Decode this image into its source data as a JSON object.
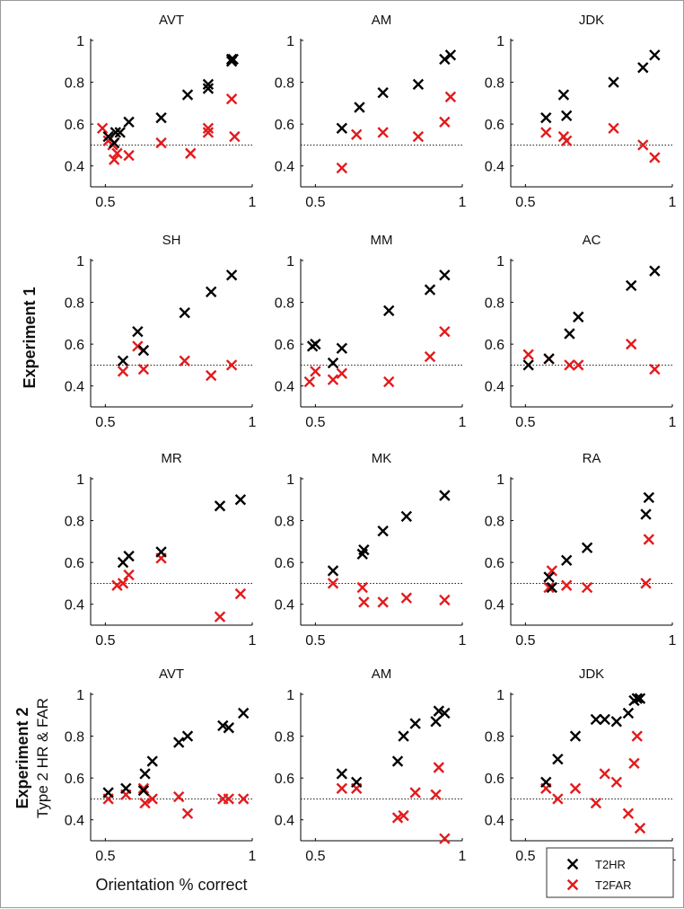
{
  "figure": {
    "xlabel": "Orientation % correct",
    "row_labels": [
      {
        "main": "Experiment 1",
        "sub": ""
      },
      {
        "main": "Experiment 2",
        "sub": "Type 2 HR & FAR"
      }
    ],
    "legend": [
      {
        "label": "T2HR",
        "color": "#000000"
      },
      {
        "label": "T2FAR",
        "color": "#e31a1c"
      }
    ],
    "reference_line": 0.5
  },
  "chart_data": [
    {
      "type": "scatter",
      "title": "AVT",
      "xlim": [
        0.45,
        1
      ],
      "ylim": [
        0.3,
        1
      ],
      "xticks": [
        "0.5",
        "1"
      ],
      "yticks": [
        "0.4",
        "0.6",
        "0.8",
        "1"
      ],
      "series": [
        {
          "name": "T2HR",
          "color": "#000000",
          "x": [
            0.51,
            0.53,
            0.535,
            0.55,
            0.58,
            0.69,
            0.78,
            0.85,
            0.85,
            0.93,
            0.93,
            0.935
          ],
          "y": [
            0.54,
            0.51,
            0.56,
            0.56,
            0.61,
            0.63,
            0.74,
            0.79,
            0.77,
            0.91,
            0.9,
            0.91
          ]
        },
        {
          "name": "T2FAR",
          "color": "#e31a1c",
          "x": [
            0.49,
            0.51,
            0.525,
            0.53,
            0.54,
            0.58,
            0.69,
            0.79,
            0.85,
            0.85,
            0.93,
            0.94
          ],
          "y": [
            0.58,
            0.52,
            0.5,
            0.43,
            0.46,
            0.45,
            0.51,
            0.46,
            0.58,
            0.56,
            0.72,
            0.54
          ]
        }
      ]
    },
    {
      "type": "scatter",
      "title": "AM",
      "xlim": [
        0.45,
        1
      ],
      "ylim": [
        0.3,
        1
      ],
      "xticks": [
        "0.5",
        "1"
      ],
      "yticks": [
        "0.4",
        "0.6",
        "0.8",
        "1"
      ],
      "series": [
        {
          "name": "T2HR",
          "color": "#000000",
          "x": [
            0.59,
            0.65,
            0.73,
            0.85,
            0.94,
            0.96
          ],
          "y": [
            0.58,
            0.68,
            0.75,
            0.79,
            0.91,
            0.93
          ]
        },
        {
          "name": "T2FAR",
          "color": "#e31a1c",
          "x": [
            0.59,
            0.64,
            0.73,
            0.85,
            0.94,
            0.96
          ],
          "y": [
            0.39,
            0.55,
            0.56,
            0.54,
            0.61,
            0.73
          ]
        }
      ]
    },
    {
      "type": "scatter",
      "title": "JDK",
      "xlim": [
        0.45,
        1
      ],
      "ylim": [
        0.3,
        1
      ],
      "xticks": [
        "0.5",
        "1"
      ],
      "yticks": [
        "0.4",
        "0.6",
        "0.8",
        "1"
      ],
      "series": [
        {
          "name": "T2HR",
          "color": "#000000",
          "x": [
            0.57,
            0.63,
            0.64,
            0.8,
            0.9,
            0.94
          ],
          "y": [
            0.63,
            0.74,
            0.64,
            0.8,
            0.87,
            0.93
          ]
        },
        {
          "name": "T2FAR",
          "color": "#e31a1c",
          "x": [
            0.57,
            0.63,
            0.64,
            0.8,
            0.9,
            0.94
          ],
          "y": [
            0.56,
            0.54,
            0.52,
            0.58,
            0.5,
            0.44
          ]
        }
      ]
    },
    {
      "type": "scatter",
      "title": "SH",
      "xlim": [
        0.45,
        1
      ],
      "ylim": [
        0.3,
        1
      ],
      "xticks": [
        "0.5",
        "1"
      ],
      "yticks": [
        "0.4",
        "0.6",
        "0.8",
        "1"
      ],
      "series": [
        {
          "name": "T2HR",
          "color": "#000000",
          "x": [
            0.56,
            0.61,
            0.63,
            0.77,
            0.86,
            0.93
          ],
          "y": [
            0.52,
            0.66,
            0.57,
            0.75,
            0.85,
            0.93
          ]
        },
        {
          "name": "T2FAR",
          "color": "#e31a1c",
          "x": [
            0.56,
            0.61,
            0.63,
            0.77,
            0.86,
            0.93
          ],
          "y": [
            0.47,
            0.59,
            0.48,
            0.52,
            0.45,
            0.5
          ]
        }
      ]
    },
    {
      "type": "scatter",
      "title": "MM",
      "xlim": [
        0.45,
        1
      ],
      "ylim": [
        0.3,
        1
      ],
      "xticks": [
        "0.5",
        "1"
      ],
      "yticks": [
        "0.4",
        "0.6",
        "0.8",
        "1"
      ],
      "series": [
        {
          "name": "T2HR",
          "color": "#000000",
          "x": [
            0.49,
            0.5,
            0.56,
            0.59,
            0.75,
            0.89,
            0.94
          ],
          "y": [
            0.59,
            0.6,
            0.51,
            0.58,
            0.76,
            0.86,
            0.93
          ]
        },
        {
          "name": "T2FAR",
          "color": "#e31a1c",
          "x": [
            0.48,
            0.5,
            0.56,
            0.59,
            0.75,
            0.89,
            0.94
          ],
          "y": [
            0.42,
            0.47,
            0.43,
            0.46,
            0.42,
            0.54,
            0.66
          ]
        }
      ]
    },
    {
      "type": "scatter",
      "title": "AC",
      "xlim": [
        0.45,
        1
      ],
      "ylim": [
        0.3,
        1
      ],
      "xticks": [
        "0.5",
        "1"
      ],
      "yticks": [
        "0.4",
        "0.6",
        "0.8",
        "1"
      ],
      "series": [
        {
          "name": "T2HR",
          "color": "#000000",
          "x": [
            0.51,
            0.58,
            0.65,
            0.68,
            0.86,
            0.94
          ],
          "y": [
            0.5,
            0.53,
            0.65,
            0.73,
            0.88,
            0.95
          ]
        },
        {
          "name": "T2FAR",
          "color": "#e31a1c",
          "x": [
            0.51,
            0.58,
            0.65,
            0.68,
            0.86,
            0.94
          ],
          "y": [
            0.55,
            0.53,
            0.5,
            0.5,
            0.6,
            0.48
          ]
        }
      ]
    },
    {
      "type": "scatter",
      "title": "MR",
      "xlim": [
        0.45,
        1
      ],
      "ylim": [
        0.3,
        1
      ],
      "xticks": [
        "0.5",
        "1"
      ],
      "yticks": [
        "0.4",
        "0.6",
        "0.8",
        "1"
      ],
      "series": [
        {
          "name": "T2HR",
          "color": "#000000",
          "x": [
            0.56,
            0.58,
            0.69,
            0.89,
            0.96
          ],
          "y": [
            0.6,
            0.63,
            0.65,
            0.87,
            0.9
          ]
        },
        {
          "name": "T2FAR",
          "color": "#e31a1c",
          "x": [
            0.54,
            0.56,
            0.58,
            0.69,
            0.89,
            0.96
          ],
          "y": [
            0.49,
            0.5,
            0.54,
            0.62,
            0.34,
            0.45
          ]
        }
      ]
    },
    {
      "type": "scatter",
      "title": "MK",
      "xlim": [
        0.45,
        1
      ],
      "ylim": [
        0.3,
        1
      ],
      "xticks": [
        "0.5",
        "1"
      ],
      "yticks": [
        "0.4",
        "0.6",
        "0.8",
        "1"
      ],
      "series": [
        {
          "name": "T2HR",
          "color": "#000000",
          "x": [
            0.56,
            0.66,
            0.665,
            0.73,
            0.81,
            0.94
          ],
          "y": [
            0.56,
            0.64,
            0.66,
            0.75,
            0.82,
            0.92
          ]
        },
        {
          "name": "T2FAR",
          "color": "#e31a1c",
          "x": [
            0.56,
            0.66,
            0.665,
            0.73,
            0.81,
            0.94
          ],
          "y": [
            0.5,
            0.48,
            0.41,
            0.41,
            0.43,
            0.42
          ]
        }
      ]
    },
    {
      "type": "scatter",
      "title": "RA",
      "xlim": [
        0.45,
        1
      ],
      "ylim": [
        0.3,
        1
      ],
      "xticks": [
        "0.5",
        "1"
      ],
      "yticks": [
        "0.4",
        "0.6",
        "0.8",
        "1"
      ],
      "series": [
        {
          "name": "T2HR",
          "color": "#000000",
          "x": [
            0.58,
            0.59,
            0.64,
            0.71,
            0.91,
            0.92
          ],
          "y": [
            0.53,
            0.48,
            0.61,
            0.67,
            0.83,
            0.91
          ]
        },
        {
          "name": "T2FAR",
          "color": "#e31a1c",
          "x": [
            0.58,
            0.59,
            0.64,
            0.71,
            0.91,
            0.92
          ],
          "y": [
            0.48,
            0.56,
            0.49,
            0.48,
            0.5,
            0.71
          ]
        }
      ]
    },
    {
      "type": "scatter",
      "title": "AVT",
      "xlim": [
        0.45,
        1
      ],
      "ylim": [
        0.3,
        1
      ],
      "xticks": [
        "0.5",
        "1"
      ],
      "yticks": [
        "0.4",
        "0.6",
        "0.8",
        "1"
      ],
      "series": [
        {
          "name": "T2HR",
          "color": "#000000",
          "x": [
            0.51,
            0.57,
            0.63,
            0.635,
            0.66,
            0.75,
            0.78,
            0.9,
            0.92,
            0.97
          ],
          "y": [
            0.53,
            0.55,
            0.54,
            0.62,
            0.68,
            0.77,
            0.8,
            0.85,
            0.84,
            0.91
          ]
        },
        {
          "name": "T2FAR",
          "color": "#e31a1c",
          "x": [
            0.51,
            0.57,
            0.63,
            0.635,
            0.66,
            0.75,
            0.78,
            0.9,
            0.92,
            0.97
          ],
          "y": [
            0.5,
            0.52,
            0.55,
            0.48,
            0.5,
            0.51,
            0.43,
            0.5,
            0.5,
            0.5
          ]
        }
      ]
    },
    {
      "type": "scatter",
      "title": "AM",
      "xlim": [
        0.45,
        1
      ],
      "ylim": [
        0.3,
        1
      ],
      "xticks": [
        "0.5",
        "1"
      ],
      "yticks": [
        "0.4",
        "0.6",
        "0.8",
        "1"
      ],
      "series": [
        {
          "name": "T2HR",
          "color": "#000000",
          "x": [
            0.59,
            0.64,
            0.78,
            0.8,
            0.84,
            0.91,
            0.92,
            0.94
          ],
          "y": [
            0.62,
            0.58,
            0.68,
            0.8,
            0.86,
            0.87,
            0.92,
            0.91
          ]
        },
        {
          "name": "T2FAR",
          "color": "#e31a1c",
          "x": [
            0.59,
            0.64,
            0.78,
            0.8,
            0.84,
            0.91,
            0.92,
            0.94
          ],
          "y": [
            0.55,
            0.55,
            0.41,
            0.42,
            0.53,
            0.52,
            0.65,
            0.31
          ]
        }
      ]
    },
    {
      "type": "scatter",
      "title": "JDK",
      "xlim": [
        0.45,
        1
      ],
      "ylim": [
        0.3,
        1
      ],
      "xticks": [
        "0.5",
        "1"
      ],
      "yticks": [
        "0.4",
        "0.6",
        "0.8",
        "1"
      ],
      "series": [
        {
          "name": "T2HR",
          "color": "#000000",
          "x": [
            0.57,
            0.61,
            0.67,
            0.74,
            0.77,
            0.81,
            0.85,
            0.87,
            0.88,
            0.89
          ],
          "y": [
            0.58,
            0.69,
            0.8,
            0.88,
            0.88,
            0.87,
            0.91,
            0.97,
            0.98,
            0.98
          ]
        },
        {
          "name": "T2FAR",
          "color": "#e31a1c",
          "x": [
            0.57,
            0.61,
            0.67,
            0.74,
            0.77,
            0.81,
            0.85,
            0.87,
            0.88,
            0.89
          ],
          "y": [
            0.55,
            0.5,
            0.55,
            0.48,
            0.62,
            0.58,
            0.43,
            0.67,
            0.8,
            0.36
          ]
        }
      ]
    }
  ]
}
